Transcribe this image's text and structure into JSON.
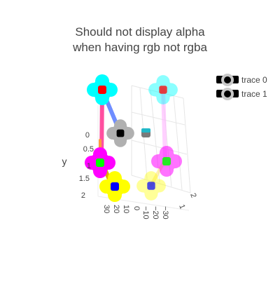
{
  "title": {
    "line1": "Should not display alpha",
    "line2": "when having rgb not rgba"
  },
  "axes": {
    "x_ticks": [
      "30",
      "20",
      "10",
      "0",
      "−10",
      "−20",
      "−30"
    ],
    "y_label": "y",
    "y_ticks": [
      "0",
      "0.5",
      "1",
      "1.5",
      "2"
    ],
    "z_ticks": [
      "1",
      "2"
    ]
  },
  "legend": {
    "entries": [
      "trace 0",
      "trace 1"
    ]
  },
  "chart_data": {
    "type": "scatter3d",
    "title": "Should not display alpha\nwhen having rgb not rgba",
    "xaxis": {
      "ticks": [
        30,
        20,
        10,
        0,
        -10,
        -20,
        -30
      ]
    },
    "yaxis": {
      "title": "y",
      "ticks": [
        0,
        0.5,
        1,
        1.5,
        2
      ],
      "range": [
        0,
        2
      ]
    },
    "zaxis": {
      "ticks": [
        1,
        2
      ]
    },
    "legend_position": "top-right",
    "series": [
      {
        "name": "trace 0",
        "mode": "lines+markers",
        "markers": [
          {
            "role": "top-left",
            "outer": "#00ffff",
            "inner": "#ff0000"
          },
          {
            "role": "center",
            "outer": "#b0b0b0",
            "inner": "#000000"
          },
          {
            "role": "left",
            "outer": "#ff00ff",
            "inner": "#00ff00"
          },
          {
            "role": "bottom-left",
            "outer": "#ffff00",
            "inner": "#0000ff"
          }
        ],
        "line_colors": [
          "#ff3399",
          "#6699ff",
          "#ff00ff",
          "#ffcc00"
        ]
      },
      {
        "name": "trace 1",
        "mode": "lines+markers",
        "markers": [
          {
            "role": "top-right",
            "outer": "#00ffff",
            "inner": "#ff0000"
          },
          {
            "role": "center-right",
            "outer": "#b0b0b0",
            "inner": "#000000"
          },
          {
            "role": "right",
            "outer": "#ff00ff",
            "inner": "#00ff00"
          },
          {
            "role": "bottom-right",
            "outer": "#ffff00",
            "inner": "#0000ff"
          }
        ]
      }
    ]
  }
}
